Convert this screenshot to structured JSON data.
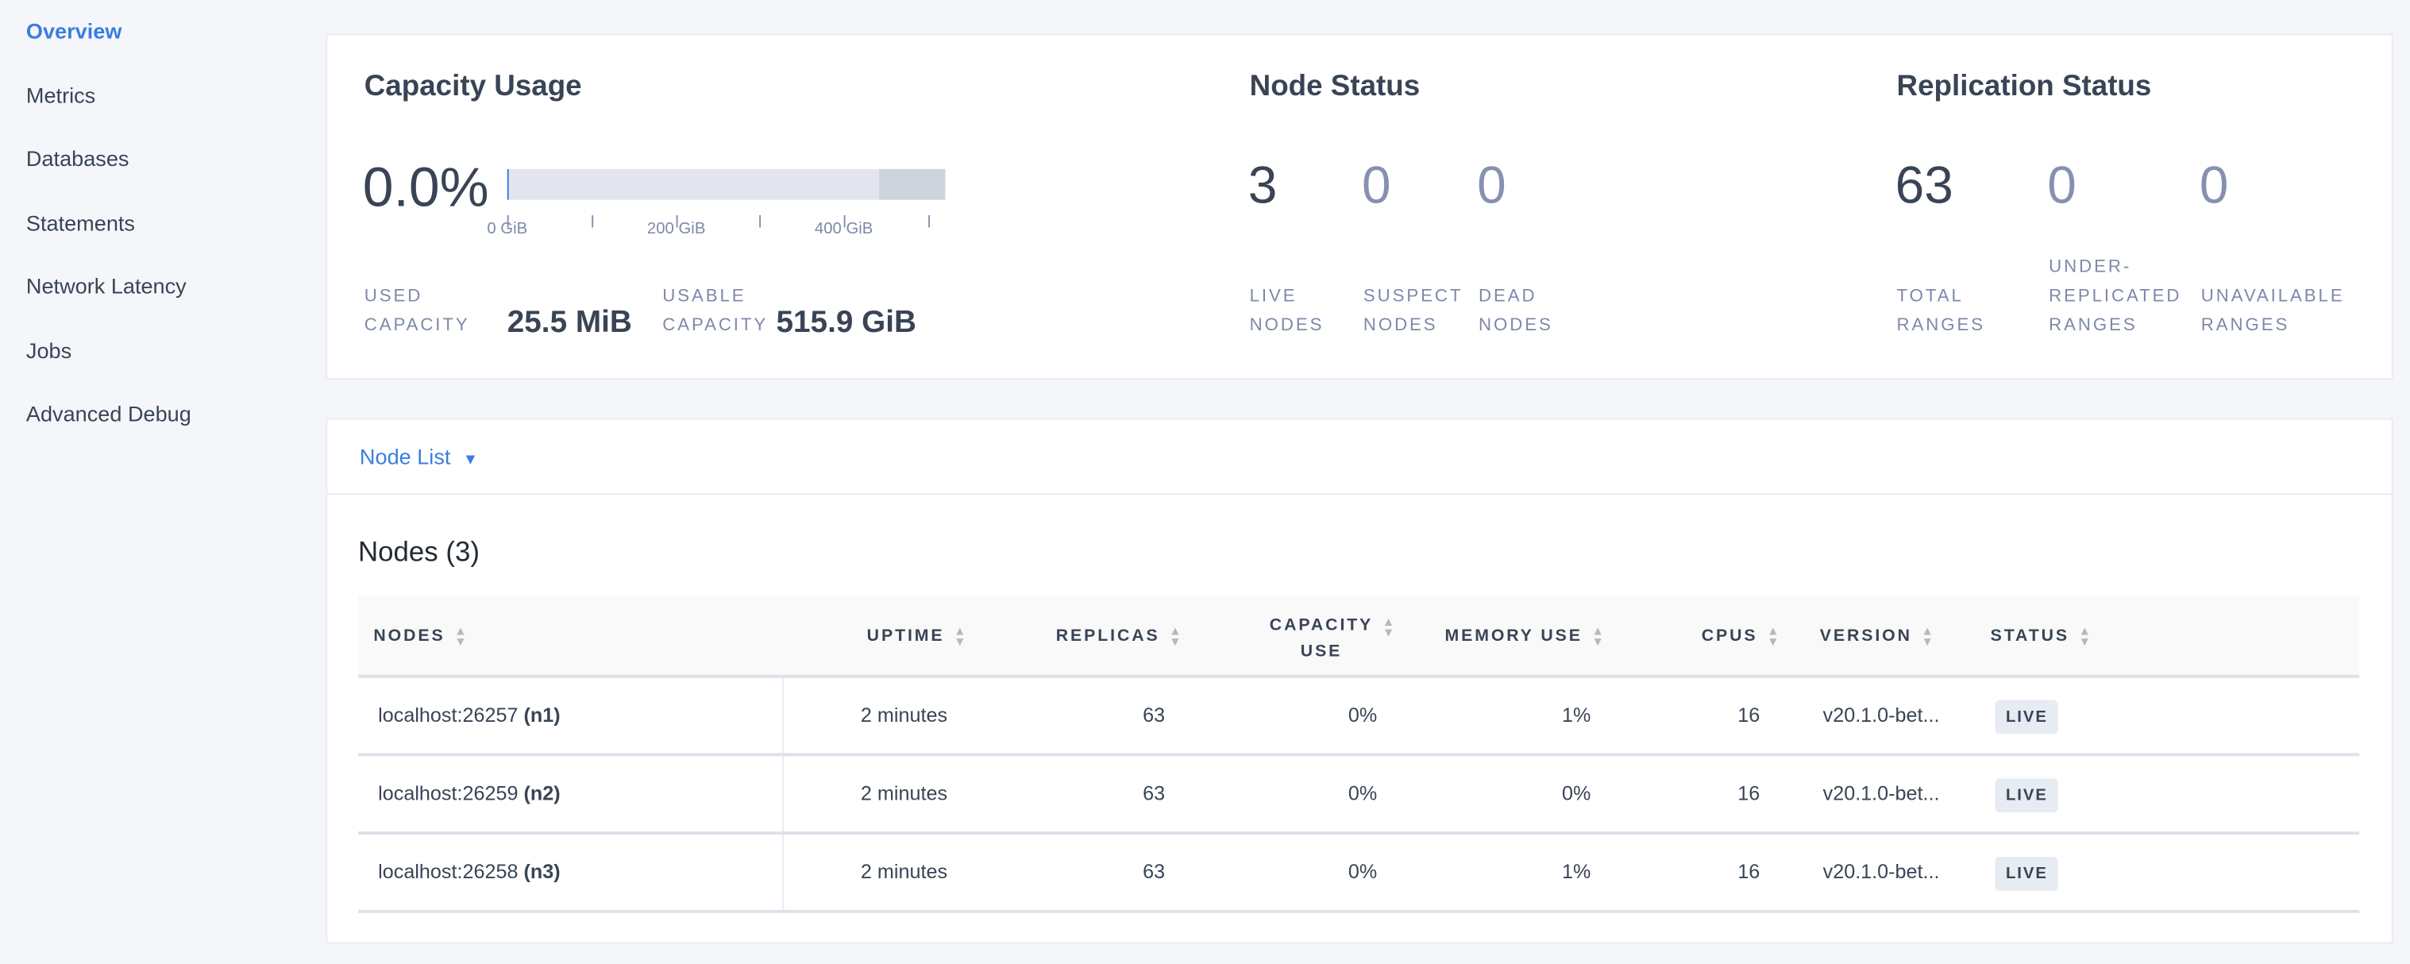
{
  "sidebar": {
    "items": [
      {
        "label": "Overview",
        "active": true
      },
      {
        "label": "Metrics"
      },
      {
        "label": "Databases"
      },
      {
        "label": "Statements"
      },
      {
        "label": "Network Latency"
      },
      {
        "label": "Jobs"
      },
      {
        "label": "Advanced Debug"
      }
    ]
  },
  "capacity": {
    "title": "Capacity Usage",
    "percent": "0.0%",
    "usage_fraction": 0.0,
    "ticks": [
      "0 GiB",
      "200 GiB",
      "400 GiB"
    ],
    "used_label_1": "USED",
    "used_label_2": "CAPACITY",
    "used_value": "25.5 MiB",
    "usable_label_1": "USABLE",
    "usable_label_2": "CAPACITY",
    "usable_value": "515.9 GiB"
  },
  "node_status": {
    "title": "Node Status",
    "live": {
      "value": "3",
      "l1": "LIVE",
      "l2": "NODES"
    },
    "suspect": {
      "value": "0",
      "l1": "SUSPECT",
      "l2": "NODES"
    },
    "dead": {
      "value": "0",
      "l1": "DEAD",
      "l2": "NODES"
    }
  },
  "replication": {
    "title": "Replication Status",
    "total": {
      "value": "63",
      "l1": "TOTAL",
      "l2": "RANGES"
    },
    "under": {
      "value": "0",
      "l0": "UNDER-",
      "l1": "REPLICATED",
      "l2": "RANGES"
    },
    "unavailable": {
      "value": "0",
      "l1": "UNAVAILABLE",
      "l2": "RANGES"
    }
  },
  "node_list": {
    "dropdown_label": "Node List",
    "heading": "Nodes (3)",
    "columns": [
      "NODES",
      "UPTIME",
      "REPLICAS",
      "CAPACITY",
      "USE",
      "MEMORY USE",
      "CPUS",
      "VERSION",
      "STATUS"
    ],
    "rows": [
      {
        "host": "localhost:26257",
        "id": "(n1)",
        "uptime": "2 minutes",
        "replicas": "63",
        "capacity": "0%",
        "memory": "1%",
        "cpus": "16",
        "version": "v20.1.0-bet...",
        "status": "LIVE"
      },
      {
        "host": "localhost:26259",
        "id": "(n2)",
        "uptime": "2 minutes",
        "replicas": "63",
        "capacity": "0%",
        "memory": "0%",
        "cpus": "16",
        "version": "v20.1.0-bet...",
        "status": "LIVE"
      },
      {
        "host": "localhost:26258",
        "id": "(n3)",
        "uptime": "2 minutes",
        "replicas": "63",
        "capacity": "0%",
        "memory": "1%",
        "cpus": "16",
        "version": "v20.1.0-bet...",
        "status": "LIVE"
      }
    ]
  },
  "colors": {
    "accent": "#3a7de1",
    "text": "#394455",
    "muted": "#7e89a9"
  }
}
